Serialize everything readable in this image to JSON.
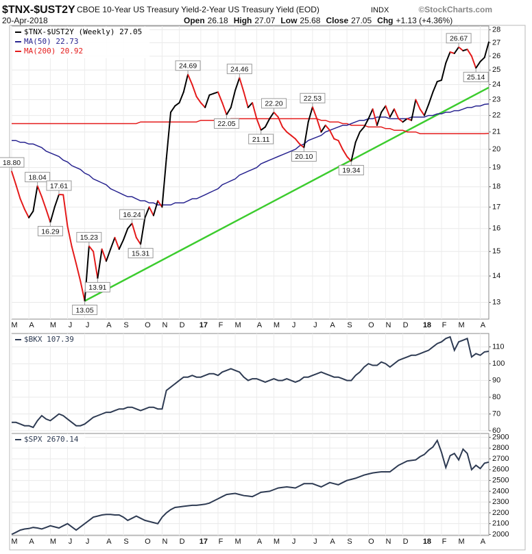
{
  "header": {
    "title": "$TNX-$UST2Y",
    "subtitle": "CBOE 10-Year US Treasury Yield-2-Year US Treasury Yield (EOD)",
    "exchange": "INDX",
    "source": "©StockCharts.com",
    "date": "20-Apr-2018",
    "quote": [
      {
        "label": "Open",
        "value": 26.18
      },
      {
        "label": "High",
        "value": 27.07
      },
      {
        "label": "Low",
        "value": 25.68
      },
      {
        "label": "Close",
        "value": 27.05
      },
      {
        "label": "Chg",
        "value": "+1.13 (+4.36%)"
      }
    ]
  },
  "chart_data": [
    {
      "type": "line",
      "ylog": true,
      "grid": true,
      "legend": "upper left",
      "ylim": [
        12.4,
        28.3
      ],
      "yticks": [
        13,
        14,
        15,
        16,
        17,
        18,
        19,
        20,
        21,
        22,
        23,
        24,
        25,
        26,
        27,
        28
      ],
      "categories": [
        "M",
        null,
        null,
        null,
        "A",
        null,
        null,
        null,
        null,
        "M",
        null,
        null,
        null,
        "J",
        null,
        null,
        null,
        "J",
        null,
        null,
        null,
        null,
        "A",
        null,
        null,
        null,
        "S",
        null,
        null,
        null,
        null,
        "O",
        null,
        null,
        null,
        "N",
        null,
        null,
        null,
        "D",
        null,
        null,
        null,
        null,
        "17",
        null,
        null,
        null,
        "F",
        null,
        null,
        null,
        "M",
        null,
        null,
        null,
        null,
        "A",
        null,
        null,
        null,
        "M",
        null,
        null,
        null,
        "J",
        null,
        null,
        null,
        null,
        "J",
        null,
        null,
        null,
        "A",
        null,
        null,
        null,
        "S",
        null,
        null,
        null,
        null,
        "O",
        null,
        null,
        null,
        "N",
        null,
        null,
        null,
        "D",
        null,
        null,
        null,
        null,
        "18",
        null,
        null,
        null,
        "F",
        null,
        null,
        null,
        "M",
        null,
        null,
        null,
        null,
        "A",
        null,
        null
      ],
      "series": [
        {
          "name": "$TNX-$UST2Y (Weekly) 27.05",
          "color": "#000000",
          "down_color": "#e41a1a",
          "values": [
            18.8,
            18.1,
            17.4,
            16.9,
            16.5,
            16.8,
            18.04,
            17.5,
            16.9,
            16.29,
            17.0,
            17.61,
            17.6,
            16.1,
            15.2,
            14.5,
            13.8,
            13.05,
            15.23,
            15.0,
            13.91,
            15.1,
            14.6,
            15.1,
            15.6,
            15.1,
            15.5,
            16.0,
            16.24,
            15.6,
            15.31,
            16.5,
            17.0,
            16.6,
            17.3,
            17.0,
            19.5,
            22.2,
            22.6,
            22.8,
            23.5,
            24.69,
            24.0,
            23.2,
            22.8,
            22.5,
            23.3,
            23.4,
            23.5,
            22.8,
            22.05,
            22.5,
            23.6,
            24.46,
            23.5,
            22.5,
            22.8,
            21.8,
            21.11,
            21.3,
            21.8,
            22.2,
            21.9,
            21.3,
            21.0,
            20.8,
            20.6,
            20.3,
            20.1,
            21.6,
            22.53,
            21.8,
            21.0,
            21.4,
            21.1,
            20.6,
            20.5,
            20.0,
            19.6,
            19.34,
            20.4,
            21.0,
            21.3,
            21.8,
            22.4,
            21.4,
            22.2,
            22.6,
            21.9,
            22.4,
            21.8,
            21.6,
            21.8,
            21.7,
            23.0,
            22.4,
            22.0,
            22.7,
            23.5,
            24.2,
            24.3,
            25.5,
            26.3,
            26.2,
            26.67,
            26.4,
            26.5,
            26.0,
            25.14,
            25.6,
            25.9,
            27.05
          ],
          "value_labels": [
            "18.80",
            null,
            null,
            null,
            null,
            null,
            "18.04",
            null,
            null,
            "16.29",
            null,
            "17.61",
            null,
            null,
            null,
            null,
            null,
            "13.05",
            "15.23",
            null,
            "13.91",
            null,
            null,
            null,
            null,
            null,
            null,
            null,
            "16.24",
            null,
            "15.31",
            null,
            null,
            null,
            null,
            null,
            null,
            null,
            null,
            null,
            null,
            "24.69",
            null,
            null,
            null,
            null,
            null,
            null,
            null,
            null,
            "22.05",
            null,
            null,
            "24.46",
            null,
            null,
            null,
            null,
            "21.11",
            null,
            null,
            "22.20",
            null,
            null,
            null,
            null,
            null,
            null,
            "20.10",
            null,
            "22.53",
            null,
            null,
            null,
            null,
            null,
            null,
            null,
            null,
            "19.34",
            null,
            null,
            null,
            null,
            null,
            null,
            null,
            null,
            null,
            null,
            null,
            null,
            null,
            null,
            null,
            null,
            null,
            null,
            null,
            null,
            null,
            null,
            null,
            null,
            "26.67",
            null,
            null,
            null,
            "25.14",
            null,
            null,
            null
          ]
        },
        {
          "name": "MA(50) 22.73",
          "color": "#27238f",
          "values": [
            20.5,
            20.5,
            20.4,
            20.4,
            20.3,
            20.3,
            20.2,
            20.1,
            19.9,
            19.8,
            19.7,
            19.6,
            19.4,
            19.3,
            19.1,
            19.0,
            18.9,
            18.7,
            18.6,
            18.4,
            18.3,
            18.2,
            18.1,
            17.9,
            17.8,
            17.7,
            17.6,
            17.5,
            17.5,
            17.4,
            17.3,
            17.3,
            17.2,
            17.2,
            17.1,
            17.1,
            17.1,
            17.1,
            17.2,
            17.2,
            17.2,
            17.3,
            17.4,
            17.4,
            17.5,
            17.6,
            17.7,
            17.8,
            17.9,
            18.1,
            18.2,
            18.3,
            18.4,
            18.6,
            18.7,
            18.8,
            18.9,
            19.0,
            19.2,
            19.3,
            19.4,
            19.5,
            19.6,
            19.7,
            19.8,
            19.9,
            20.0,
            20.2,
            20.3,
            20.5,
            20.6,
            20.7,
            20.8,
            21.0,
            21.1,
            21.2,
            21.3,
            21.4,
            21.4,
            21.5,
            21.6,
            21.7,
            21.7,
            21.8,
            21.8,
            21.9,
            21.9,
            21.9,
            21.8,
            21.8,
            21.8,
            21.8,
            21.8,
            21.9,
            21.9,
            21.9,
            21.9,
            22.0,
            22.0,
            22.1,
            22.1,
            22.2,
            22.2,
            22.3,
            22.3,
            22.4,
            22.5,
            22.5,
            22.6,
            22.6,
            22.7,
            22.73
          ]
        },
        {
          "name": "MA(200) 20.92",
          "color": "#e41a1a",
          "values": [
            21.5,
            21.5,
            21.5,
            21.5,
            21.5,
            21.5,
            21.5,
            21.5,
            21.5,
            21.5,
            21.5,
            21.5,
            21.5,
            21.5,
            21.5,
            21.5,
            21.5,
            21.5,
            21.5,
            21.5,
            21.5,
            21.5,
            21.5,
            21.5,
            21.5,
            21.5,
            21.5,
            21.5,
            21.5,
            21.5,
            21.6,
            21.6,
            21.6,
            21.6,
            21.6,
            21.6,
            21.6,
            21.6,
            21.6,
            21.6,
            21.6,
            21.6,
            21.6,
            21.6,
            21.7,
            21.7,
            21.7,
            21.7,
            21.7,
            21.7,
            21.7,
            21.8,
            21.8,
            21.8,
            21.8,
            21.8,
            21.8,
            21.8,
            21.8,
            21.8,
            21.8,
            21.8,
            21.8,
            21.8,
            21.8,
            21.8,
            21.8,
            21.8,
            21.8,
            21.8,
            21.8,
            21.8,
            21.7,
            21.7,
            21.6,
            21.6,
            21.6,
            21.5,
            21.5,
            21.4,
            21.4,
            21.4,
            21.4,
            21.3,
            21.3,
            21.3,
            21.3,
            21.2,
            21.2,
            21.1,
            21.1,
            21.1,
            21.0,
            21.0,
            21.0,
            20.9,
            20.9,
            20.9,
            20.9,
            20.9,
            20.9,
            20.9,
            20.9,
            20.9,
            20.9,
            20.9,
            20.9,
            20.9,
            20.9,
            20.9,
            20.9,
            20.92
          ]
        }
      ],
      "trendline": {
        "color": "#3ccc2e",
        "end": 23.8
      }
    },
    {
      "type": "line",
      "grid": true,
      "legend": "upper left",
      "ylim": [
        60,
        118
      ],
      "yticks": [
        60,
        70,
        80,
        90,
        100,
        110
      ],
      "series": [
        {
          "name": "$BKX 107.39",
          "color": "#2d3a52",
          "values": [
            65,
            65,
            64,
            63,
            63,
            62,
            66,
            69,
            67,
            66,
            68,
            70,
            69,
            67,
            65,
            63,
            63,
            64,
            66,
            68,
            69,
            70,
            71,
            71,
            72,
            73,
            73,
            74,
            74,
            73,
            72,
            73,
            74,
            74,
            73,
            73,
            84,
            86,
            88,
            90,
            92,
            92,
            93,
            92,
            92,
            93,
            94,
            94,
            93,
            95,
            96,
            97,
            96,
            95,
            92,
            90,
            91,
            91,
            90,
            89,
            90,
            91,
            90,
            90,
            91,
            90,
            89,
            90,
            92,
            92,
            93,
            94,
            95,
            94,
            93,
            92,
            92,
            91,
            90,
            90,
            93,
            95,
            98,
            100,
            99,
            99,
            101,
            100,
            98,
            100,
            102,
            103,
            104,
            105,
            105,
            106,
            107,
            108,
            110,
            112,
            113,
            115,
            116,
            108,
            113,
            114,
            115,
            104,
            106,
            105,
            107,
            107.39
          ]
        }
      ]
    },
    {
      "type": "line",
      "grid": true,
      "legend": "upper left",
      "ylim": [
        1990,
        2935
      ],
      "yticks": [
        2000,
        2100,
        2200,
        2300,
        2400,
        2500,
        2600,
        2700,
        2800,
        2900
      ],
      "categories": [
        "M",
        null,
        null,
        null,
        "A",
        null,
        null,
        null,
        null,
        "M",
        null,
        null,
        null,
        "J",
        null,
        null,
        null,
        "J",
        null,
        null,
        null,
        null,
        "A",
        null,
        null,
        null,
        "S",
        null,
        null,
        null,
        null,
        "O",
        null,
        null,
        null,
        "N",
        null,
        null,
        null,
        "D",
        null,
        null,
        null,
        null,
        "17",
        null,
        null,
        null,
        "F",
        null,
        null,
        null,
        "M",
        null,
        null,
        null,
        null,
        "A",
        null,
        null,
        null,
        "M",
        null,
        null,
        null,
        "J",
        null,
        null,
        null,
        null,
        "J",
        null,
        null,
        null,
        "A",
        null,
        null,
        null,
        "S",
        null,
        null,
        null,
        null,
        "O",
        null,
        null,
        null,
        "N",
        null,
        null,
        null,
        "D",
        null,
        null,
        null,
        null,
        "18",
        null,
        null,
        null,
        "F",
        null,
        null,
        null,
        "M",
        null,
        null,
        null,
        null,
        "A",
        null,
        null
      ],
      "series": [
        {
          "name": "$SPX 2670.14",
          "color": "#2d3a52",
          "values": [
            2000,
            2020,
            2040,
            2050,
            2055,
            2065,
            2060,
            2050,
            2065,
            2080,
            2070,
            2060,
            2080,
            2100,
            2070,
            2040,
            2070,
            2100,
            2130,
            2160,
            2170,
            2180,
            2185,
            2185,
            2180,
            2180,
            2160,
            2130,
            2150,
            2170,
            2150,
            2130,
            2120,
            2110,
            2100,
            2160,
            2200,
            2230,
            2250,
            2255,
            2260,
            2265,
            2270,
            2270,
            2275,
            2280,
            2290,
            2310,
            2330,
            2350,
            2370,
            2375,
            2380,
            2370,
            2360,
            2355,
            2350,
            2370,
            2390,
            2395,
            2400,
            2415,
            2430,
            2435,
            2440,
            2435,
            2430,
            2450,
            2470,
            2470,
            2470,
            2455,
            2440,
            2460,
            2480,
            2470,
            2460,
            2480,
            2500,
            2510,
            2520,
            2535,
            2550,
            2560,
            2570,
            2575,
            2580,
            2580,
            2580,
            2610,
            2640,
            2660,
            2680,
            2685,
            2690,
            2720,
            2740,
            2780,
            2810,
            2870,
            2760,
            2620,
            2730,
            2750,
            2690,
            2790,
            2750,
            2600,
            2640,
            2610,
            2660,
            2670.14
          ]
        }
      ]
    }
  ]
}
